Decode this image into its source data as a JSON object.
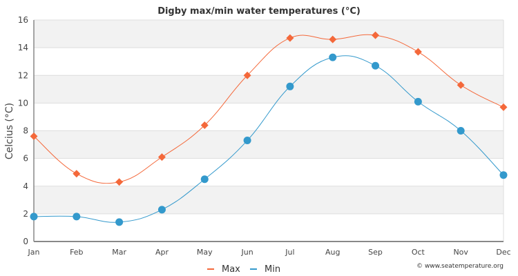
{
  "chart_data": {
    "type": "line",
    "title": "Digby max/min water temperatures (°C)",
    "xlabel": "",
    "ylabel": "Celcius (°C)",
    "categories": [
      "Jan",
      "Feb",
      "Mar",
      "Apr",
      "May",
      "Jun",
      "Jul",
      "Aug",
      "Sep",
      "Oct",
      "Nov",
      "Dec"
    ],
    "yticks": [
      0,
      2,
      4,
      6,
      8,
      10,
      12,
      14,
      16
    ],
    "ylim": [
      0,
      16
    ],
    "grid": true,
    "legend_position": "bottom-center",
    "series": [
      {
        "name": "Max",
        "color": "#f4683a",
        "marker": "diamond",
        "values": [
          7.6,
          4.9,
          4.3,
          6.1,
          8.4,
          12.0,
          14.7,
          14.6,
          14.9,
          13.7,
          11.3,
          9.7
        ]
      },
      {
        "name": "Min",
        "color": "#3399cc",
        "marker": "circle",
        "values": [
          1.8,
          1.8,
          1.4,
          2.3,
          4.5,
          7.3,
          11.2,
          13.3,
          12.7,
          10.1,
          8.0,
          4.8
        ]
      }
    ]
  },
  "credit": "© www.seatemperature.org"
}
